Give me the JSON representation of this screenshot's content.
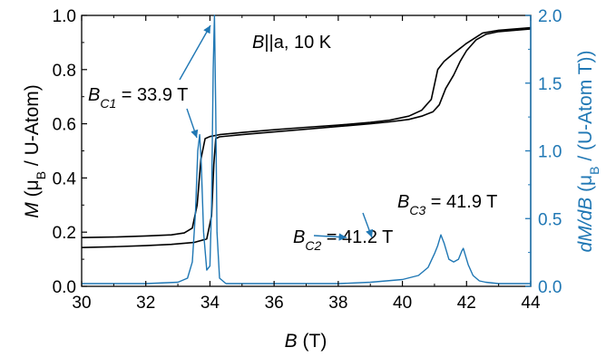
{
  "chart_data": {
    "type": "line",
    "x_axis": {
      "range": [
        30,
        44
      ],
      "ticks": [
        "30",
        "32",
        "34",
        "36",
        "38",
        "40",
        "42",
        "44"
      ],
      "label": {
        "symbol": "B",
        "rest": " (T)"
      }
    },
    "y_axis_left": {
      "range": [
        0.0,
        1.0
      ],
      "ticks": [
        "0.0",
        "0.2",
        "0.4",
        "0.6",
        "0.8",
        "1.0"
      ],
      "label": {
        "symbol": "M",
        "rest_before": " (μ",
        "sub": "B",
        "rest_after": " / U-Atom)"
      },
      "color": "#000000"
    },
    "y_axis_right": {
      "range": [
        0.0,
        2.0
      ],
      "ticks": [
        "0.0",
        "0.5",
        "1.0",
        "1.5",
        "2.0"
      ],
      "label": {
        "symbol": "dM/dB",
        "rest_before": " (μ",
        "sub": "B",
        "rest_after": " / (U-Atom T))"
      },
      "color": "#1f77b4"
    },
    "series": [
      {
        "axis": "left",
        "color": "#000000",
        "x": [
          30,
          31,
          32,
          32.8,
          33.2,
          33.45,
          33.6,
          33.72,
          33.85,
          34,
          34.3,
          35,
          36,
          37,
          38,
          39,
          39.6,
          40.2,
          40.6,
          40.9,
          41.1,
          41.3,
          41.6,
          42,
          42.5,
          43,
          44
        ],
        "y": [
          0.18,
          0.182,
          0.186,
          0.19,
          0.197,
          0.215,
          0.3,
          0.47,
          0.545,
          0.553,
          0.56,
          0.568,
          0.578,
          0.587,
          0.595,
          0.605,
          0.613,
          0.628,
          0.65,
          0.69,
          0.8,
          0.83,
          0.86,
          0.897,
          0.935,
          0.945,
          0.955
        ]
      },
      {
        "axis": "left",
        "color": "#000000",
        "x": [
          30,
          31,
          32,
          32.8,
          33.5,
          33.9,
          34.05,
          34.12,
          34.18,
          34.3,
          35,
          36,
          37,
          38,
          39,
          39.6,
          40.2,
          40.6,
          40.95,
          41.15,
          41.35,
          41.6,
          41.8,
          42,
          42.3,
          42.6,
          43,
          44
        ],
        "y": [
          0.143,
          0.146,
          0.15,
          0.155,
          0.162,
          0.175,
          0.26,
          0.45,
          0.545,
          0.552,
          0.56,
          0.57,
          0.58,
          0.59,
          0.6,
          0.607,
          0.616,
          0.628,
          0.644,
          0.67,
          0.73,
          0.78,
          0.83,
          0.87,
          0.91,
          0.93,
          0.94,
          0.95
        ]
      },
      {
        "axis": "right",
        "color": "#1f77b4",
        "x": [
          30,
          31,
          32,
          33,
          33.3,
          33.45,
          33.55,
          33.62,
          33.68,
          33.73,
          33.8,
          33.9,
          34.0,
          34.05,
          34.1,
          34.14,
          34.18,
          34.22,
          34.3,
          34.5,
          35,
          36,
          37,
          38,
          39,
          40,
          40.5,
          40.8,
          41.0,
          41.1,
          41.2,
          41.3,
          41.45,
          41.6,
          41.75,
          41.85,
          41.9,
          41.95,
          42.05,
          42.2,
          42.4,
          42.6,
          43,
          44
        ],
        "y": [
          0.02,
          0.02,
          0.02,
          0.03,
          0.06,
          0.18,
          0.55,
          1.0,
          1.12,
          0.9,
          0.4,
          0.12,
          0.15,
          0.6,
          1.6,
          2.0,
          1.3,
          0.4,
          0.06,
          0.02,
          0.02,
          0.02,
          0.02,
          0.02,
          0.03,
          0.05,
          0.08,
          0.14,
          0.24,
          0.3,
          0.38,
          0.32,
          0.2,
          0.18,
          0.2,
          0.26,
          0.28,
          0.24,
          0.16,
          0.08,
          0.04,
          0.03,
          0.02,
          0.02
        ]
      }
    ],
    "annotations": [
      {
        "id": "header",
        "symbol": "B",
        "text": "||a, 10 K"
      },
      {
        "id": "bc1",
        "symbol": "B",
        "sub": "C1",
        "text": " = 33.9 T"
      },
      {
        "id": "bc2",
        "symbol": "B",
        "sub": "C2",
        "text": " = 41.2 T"
      },
      {
        "id": "bc3",
        "symbol": "B",
        "sub": "C3",
        "text": " = 41.9 T"
      }
    ]
  }
}
